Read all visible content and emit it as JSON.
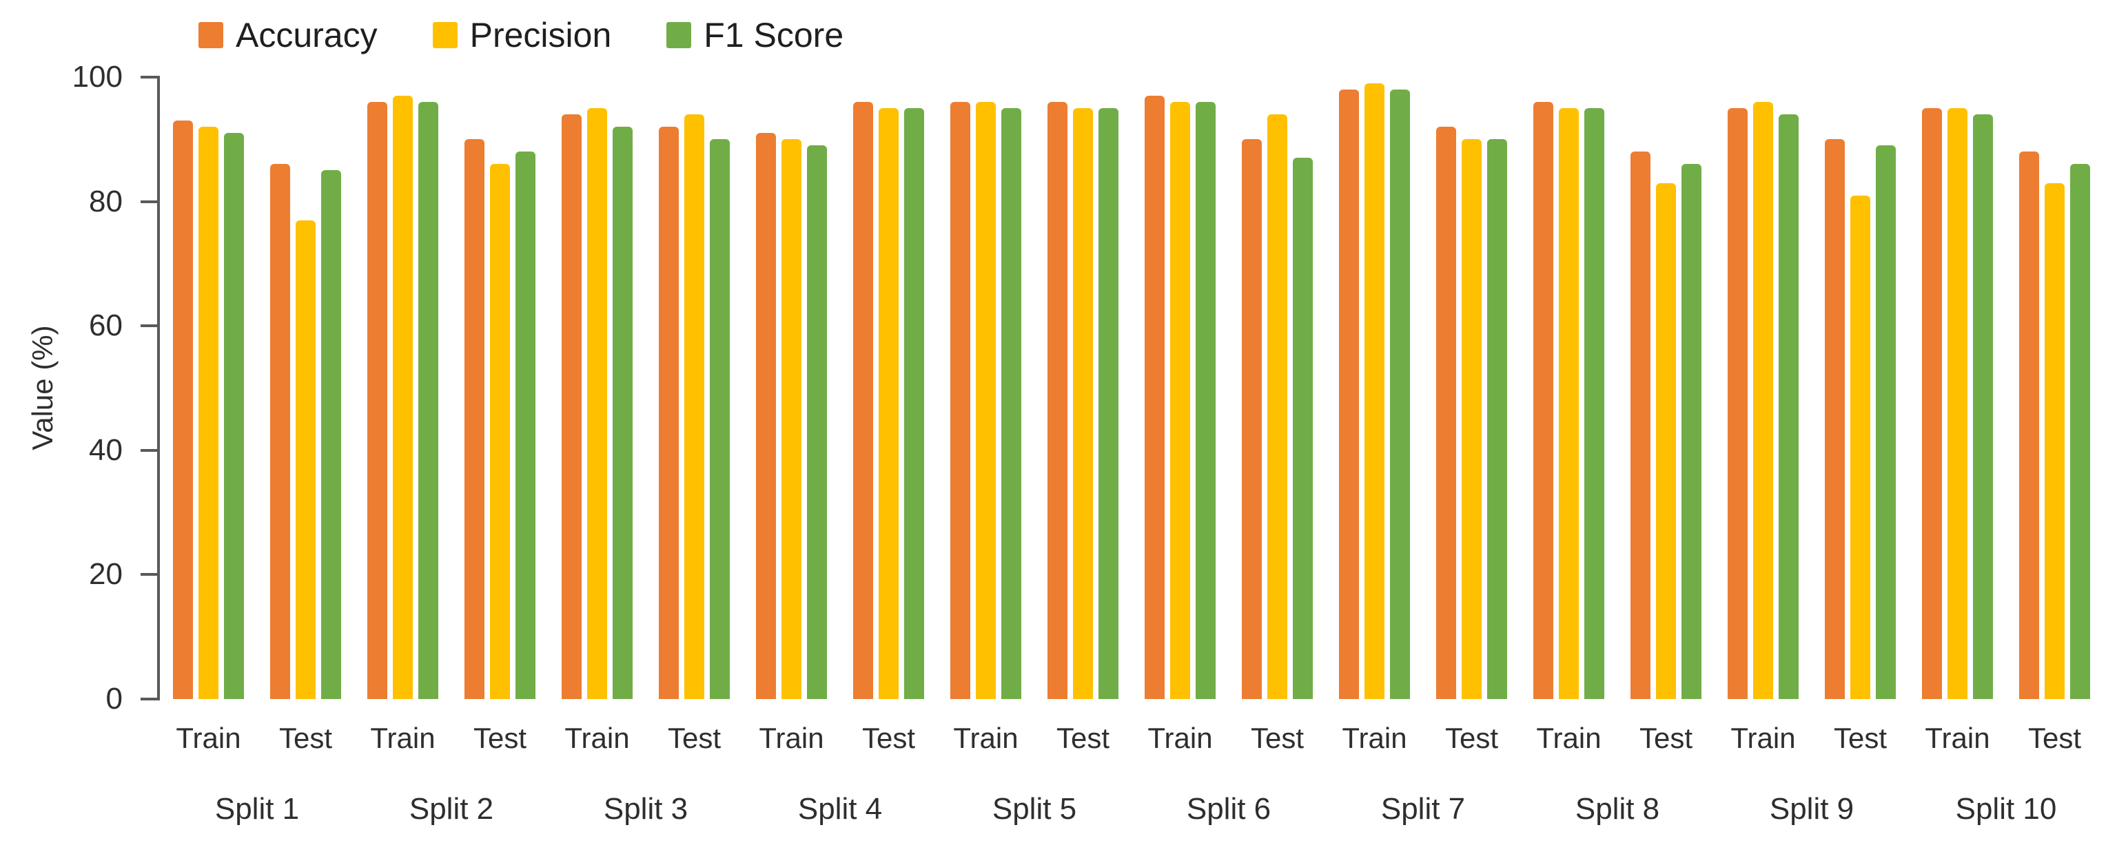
{
  "chart_data": {
    "type": "bar",
    "title": "",
    "ylabel": "Value (%)",
    "xlabel": "",
    "ylim": [
      0,
      100
    ],
    "yticks": [
      0,
      20,
      40,
      60,
      80,
      100
    ],
    "grid": false,
    "legend_position": "top-left",
    "axis_color": "#595959",
    "series": [
      {
        "name": "Accuracy",
        "color": "#ED7D31"
      },
      {
        "name": "Precision",
        "color": "#FFC000"
      },
      {
        "name": "F1 Score",
        "color": "#70AD47"
      }
    ],
    "splits": [
      {
        "label": "Split 1",
        "groups": [
          {
            "label": "Train",
            "values": [
              93,
              92,
              91
            ]
          },
          {
            "label": "Test",
            "values": [
              86,
              77,
              85
            ]
          }
        ]
      },
      {
        "label": "Split 2",
        "groups": [
          {
            "label": "Train",
            "values": [
              96,
              97,
              96
            ]
          },
          {
            "label": "Test",
            "values": [
              90,
              86,
              88
            ]
          }
        ]
      },
      {
        "label": "Split 3",
        "groups": [
          {
            "label": "Train",
            "values": [
              94,
              95,
              92
            ]
          },
          {
            "label": "Test",
            "values": [
              92,
              94,
              90
            ]
          }
        ]
      },
      {
        "label": "Split 4",
        "groups": [
          {
            "label": "Train",
            "values": [
              91,
              90,
              89
            ]
          },
          {
            "label": "Test",
            "values": [
              96,
              95,
              95
            ]
          }
        ]
      },
      {
        "label": "Split 5",
        "groups": [
          {
            "label": "Train",
            "values": [
              96,
              96,
              95
            ]
          },
          {
            "label": "Test",
            "values": [
              96,
              95,
              95
            ]
          }
        ]
      },
      {
        "label": "Split 6",
        "groups": [
          {
            "label": "Train",
            "values": [
              97,
              96,
              96
            ]
          },
          {
            "label": "Test",
            "values": [
              90,
              94,
              87
            ]
          }
        ]
      },
      {
        "label": "Split 7",
        "groups": [
          {
            "label": "Train",
            "values": [
              98,
              99,
              98
            ]
          },
          {
            "label": "Test",
            "values": [
              92,
              90,
              90
            ]
          }
        ]
      },
      {
        "label": "Split 8",
        "groups": [
          {
            "label": "Train",
            "values": [
              96,
              95,
              95
            ]
          },
          {
            "label": "Test",
            "values": [
              88,
              83,
              86
            ]
          }
        ]
      },
      {
        "label": "Split 9",
        "groups": [
          {
            "label": "Train",
            "values": [
              95,
              96,
              94
            ]
          },
          {
            "label": "Test",
            "values": [
              90,
              81,
              89
            ]
          }
        ]
      },
      {
        "label": "Split 10",
        "groups": [
          {
            "label": "Train",
            "values": [
              95,
              95,
              94
            ]
          },
          {
            "label": "Test",
            "values": [
              88,
              83,
              86
            ]
          }
        ]
      }
    ]
  }
}
